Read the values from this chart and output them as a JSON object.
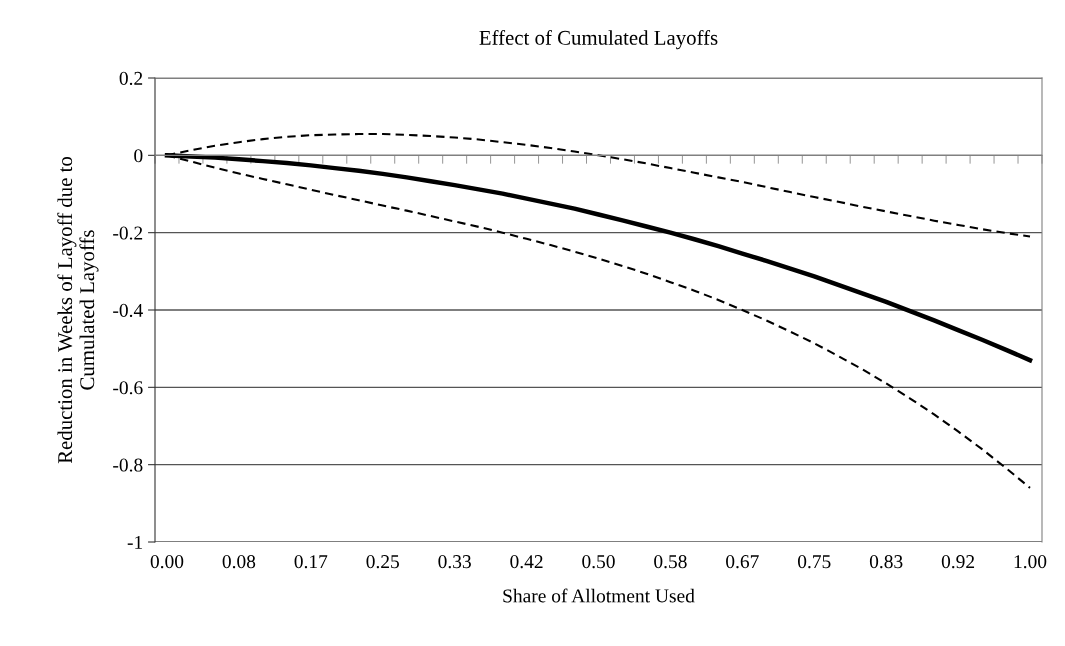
{
  "chart_data": {
    "type": "line",
    "title": "Effect of Cumulated Layoffs",
    "xlabel": "Share of Allotment Used",
    "ylabel": "Reduction in Weeks of Layoff due to\nCumulated Layoffs",
    "categories": [
      "0.00",
      null,
      null,
      "0.08",
      null,
      null,
      "0.17",
      null,
      null,
      "0.25",
      null,
      null,
      "0.33",
      null,
      null,
      "0.42",
      null,
      null,
      "0.50",
      null,
      null,
      "0.58",
      null,
      null,
      "0.67",
      null,
      null,
      "0.75",
      null,
      null,
      "0.83",
      null,
      null,
      "0.92",
      null,
      null,
      "1.00"
    ],
    "series": [
      {
        "color": "#000000",
        "line_style": "solid",
        "values": [
          0,
          -0.003,
          -0.006,
          -0.01,
          -0.015,
          -0.02,
          -0.026,
          -0.033,
          -0.04,
          -0.048,
          -0.057,
          -0.067,
          -0.077,
          -0.088,
          -0.099,
          -0.112,
          -0.125,
          -0.138,
          -0.153,
          -0.168,
          -0.184,
          -0.2,
          -0.217,
          -0.235,
          -0.254,
          -0.273,
          -0.293,
          -0.313,
          -0.335,
          -0.357,
          -0.379,
          -0.403,
          -0.427,
          -0.452,
          -0.477,
          -0.503,
          -0.53
        ]
      },
      {
        "color": "#000000",
        "line_style": "dashed",
        "values": [
          0,
          0.013,
          0.025,
          0.034,
          0.042,
          0.048,
          0.052,
          0.054,
          0.055,
          0.055,
          0.053,
          0.05,
          0.046,
          0.041,
          0.034,
          0.027,
          0.019,
          0.01,
          0,
          -0.01,
          -0.021,
          -0.033,
          -0.045,
          -0.057,
          -0.069,
          -0.082,
          -0.095,
          -0.108,
          -0.12,
          -0.133,
          -0.145,
          -0.157,
          -0.169,
          -0.18,
          -0.191,
          -0.201,
          -0.21
        ]
      },
      {
        "color": "#000000",
        "line_style": "dashed",
        "values": [
          0,
          -0.016,
          -0.032,
          -0.047,
          -0.061,
          -0.075,
          -0.089,
          -0.103,
          -0.116,
          -0.13,
          -0.143,
          -0.157,
          -0.171,
          -0.185,
          -0.2,
          -0.216,
          -0.232,
          -0.249,
          -0.267,
          -0.286,
          -0.306,
          -0.328,
          -0.35,
          -0.374,
          -0.4,
          -0.427,
          -0.456,
          -0.486,
          -0.519,
          -0.553,
          -0.59,
          -0.629,
          -0.67,
          -0.714,
          -0.76,
          -0.809,
          -0.86
        ]
      }
    ],
    "ylim": [
      -1,
      0.2
    ],
    "yticks": [
      0.2,
      0,
      -0.2,
      -0.4,
      -0.6,
      -0.8,
      -1
    ],
    "grid": "y",
    "legend": false
  }
}
